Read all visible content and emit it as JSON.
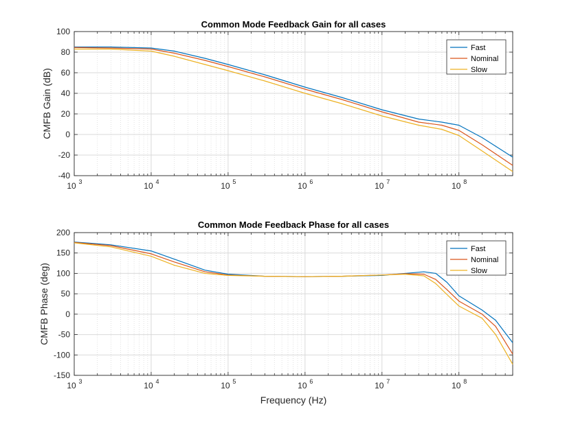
{
  "colors": {
    "background": "#ffffff",
    "axes": "#262626",
    "grid": "#d9d9d9",
    "series": [
      "#0072BD",
      "#D95319",
      "#EDB120"
    ]
  },
  "chart_data": [
    {
      "type": "line",
      "title": "Common Mode Feedback Gain for all cases",
      "xlabel": "",
      "ylabel": "CMFB Gain (dB)",
      "xscale": "log",
      "xlim": [
        1000,
        500000000
      ],
      "ylim": [
        -40,
        100
      ],
      "yticks": [
        100,
        80,
        60,
        40,
        20,
        0,
        -20,
        -40
      ],
      "xtick_labels": [
        {
          "base": "10",
          "exp": "3"
        },
        {
          "base": "10",
          "exp": "4"
        },
        {
          "base": "10",
          "exp": "5"
        },
        {
          "base": "10",
          "exp": "6"
        },
        {
          "base": "10",
          "exp": "7"
        },
        {
          "base": "10",
          "exp": "8"
        }
      ],
      "grid": "minor-and-major on x, major on y",
      "legend_position": "top-right",
      "x": [
        1000,
        3000,
        10000,
        20000,
        50000,
        100000,
        300000,
        1000000,
        3000000,
        10000000,
        30000000,
        60000000,
        100000000,
        200000000,
        500000000
      ],
      "series": [
        {
          "name": "Fast",
          "values": [
            85,
            85,
            84,
            81,
            74,
            68,
            58,
            46,
            36,
            24,
            15,
            12,
            9,
            -3,
            -22
          ]
        },
        {
          "name": "Nominal",
          "values": [
            84.5,
            84,
            83,
            79,
            72,
            66,
            56,
            44,
            34,
            22,
            12,
            9,
            4,
            -10,
            -30
          ]
        },
        {
          "name": "Slow",
          "values": [
            83,
            83,
            81,
            76,
            68,
            62,
            52,
            40,
            30,
            18,
            9,
            5,
            -1,
            -16,
            -36
          ]
        }
      ]
    },
    {
      "type": "line",
      "title": "Common Mode Feedback Phase for all cases",
      "xlabel": "Frequency (Hz)",
      "ylabel": "CMFB Phase (deg)",
      "xscale": "log",
      "xlim": [
        1000,
        500000000
      ],
      "ylim": [
        -150,
        200
      ],
      "yticks": [
        200,
        150,
        100,
        50,
        0,
        -50,
        -100,
        -150
      ],
      "xtick_labels": [
        {
          "base": "10",
          "exp": "3"
        },
        {
          "base": "10",
          "exp": "4"
        },
        {
          "base": "10",
          "exp": "5"
        },
        {
          "base": "10",
          "exp": "6"
        },
        {
          "base": "10",
          "exp": "7"
        },
        {
          "base": "10",
          "exp": "8"
        }
      ],
      "grid": "minor-and-major on x, major on y",
      "legend_position": "top-right",
      "x": [
        1000,
        3000,
        10000,
        20000,
        50000,
        100000,
        300000,
        1000000,
        3000000,
        10000000,
        20000000,
        35000000,
        50000000,
        70000000,
        100000000,
        200000000,
        300000000,
        500000000
      ],
      "series": [
        {
          "name": "Fast",
          "values": [
            177,
            170,
            155,
            135,
            108,
            98,
            93,
            92,
            93,
            95,
            100,
            104,
            100,
            78,
            45,
            10,
            -15,
            -70
          ]
        },
        {
          "name": "Nominal",
          "values": [
            176,
            168,
            148,
            128,
            104,
            96,
            93,
            92,
            93,
            96,
            99,
            98,
            85,
            60,
            32,
            0,
            -30,
            -98
          ]
        },
        {
          "name": "Slow",
          "values": [
            175,
            165,
            142,
            120,
            100,
            95,
            93,
            92,
            93,
            96,
            98,
            94,
            75,
            48,
            20,
            -10,
            -50,
            -123
          ]
        }
      ]
    }
  ]
}
